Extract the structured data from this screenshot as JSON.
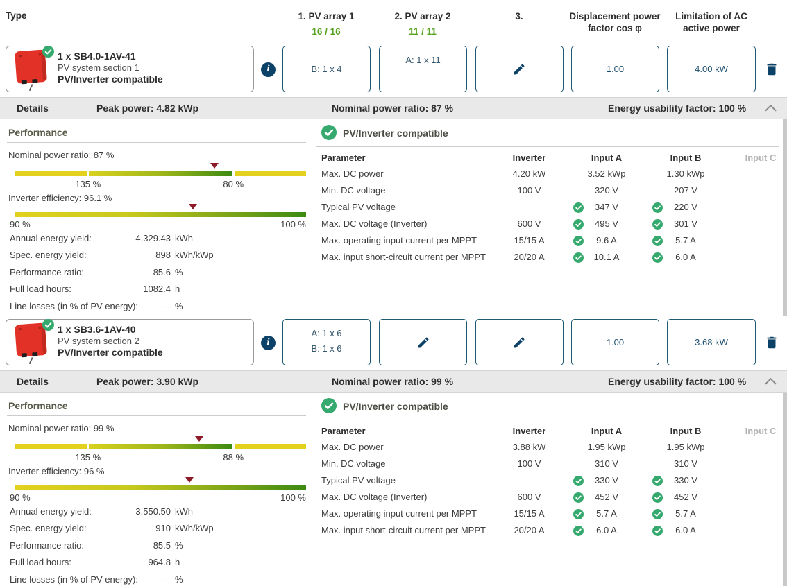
{
  "colors": {
    "accent_navy": "#0d4268",
    "ok_green": "#35a96e",
    "count_green": "#56a11d",
    "gauge_yellow": "#e3d11e",
    "gauge_green": "#3b8a12",
    "marker_red": "#8c1a28",
    "bar_bg": "#e9e9e9"
  },
  "icons": {
    "info": "i"
  },
  "header": {
    "type_label": "Type",
    "col1": {
      "title": "1. PV array 1",
      "count": "16 / 16"
    },
    "col2": {
      "title": "2. PV array 2",
      "count": "11 / 11"
    },
    "col3": {
      "title": "3."
    },
    "col4": {
      "line1": "Displacement power",
      "line2": "factor cos φ"
    },
    "col5": {
      "line1": "Limitation of AC",
      "line2": "active power"
    }
  },
  "inverters": [
    {
      "title": "1 x SB4.0-1AV-41",
      "section": "PV system section 1",
      "status": "PV/Inverter compatible",
      "array1_line": "B: 1 x 4",
      "array2_line": "A: 1 x 11",
      "cos_phi": "1.00",
      "ac_limit": "4.00 kW",
      "details_bar": {
        "label": "Details",
        "peak": "Peak power: 4.82 kWp",
        "npr": "Nominal power ratio: 87 %",
        "euf": "Energy usability factor: 100 %"
      },
      "performance": {
        "heading": "Performance",
        "npr_label": "Nominal power ratio: 87 %",
        "gauge1": {
          "left_label": "135 %",
          "right_label": "80 %",
          "marker_pct": 68.6
        },
        "eff_label": "Inverter efficiency: 96.1 %",
        "gauge2": {
          "left_label": "90 %",
          "right_label": "100 %",
          "marker_pct": 61
        },
        "stats": [
          {
            "label": "Annual energy yield:",
            "num": "4,329.43",
            "unit": "kWh"
          },
          {
            "label": "Spec. energy yield:",
            "num": "898",
            "unit": "kWh/kWp"
          },
          {
            "label": "Performance ratio:",
            "num": "85.6",
            "unit": "%"
          },
          {
            "label": "Full load hours:",
            "num": "1082.4",
            "unit": "h"
          },
          {
            "label": "Line losses (in % of PV energy):",
            "num": "---",
            "unit": "%"
          }
        ]
      },
      "compat": {
        "status": "PV/Inverter compatible",
        "headers": {
          "param": "Parameter",
          "inverter": "Inverter",
          "a": "Input A",
          "b": "Input B",
          "c": "Input C"
        },
        "rows": [
          {
            "param": "Max. DC power",
            "inv": "4.20 kW",
            "a_ok": false,
            "a": "3.52 kWp",
            "b_ok": false,
            "b": "1.30 kWp"
          },
          {
            "param": "Min. DC voltage",
            "inv": "100 V",
            "a_ok": false,
            "a": "320 V",
            "b_ok": false,
            "b": "207 V"
          },
          {
            "param": "Typical PV voltage",
            "inv": "",
            "a_ok": true,
            "a": "347 V",
            "b_ok": true,
            "b": "220 V"
          },
          {
            "param": "Max. DC voltage (Inverter)",
            "inv": "600 V",
            "a_ok": true,
            "a": "495 V",
            "b_ok": true,
            "b": "301 V"
          },
          {
            "param": "Max. operating input current per MPPT",
            "inv": "15/15 A",
            "a_ok": true,
            "a": "9.6 A",
            "b_ok": true,
            "b": "5.7 A"
          },
          {
            "param": "Max. input short-circuit current per MPPT",
            "inv": "20/20 A",
            "a_ok": true,
            "a": "10.1 A",
            "b_ok": true,
            "b": "6.0 A"
          }
        ]
      }
    },
    {
      "title": "1 x SB3.6-1AV-40",
      "section": "PV system section 2",
      "status": "PV/Inverter compatible",
      "array1_line_a": "A: 1 x 6",
      "array1_line_b": "B: 1 x 6",
      "cos_phi": "1.00",
      "ac_limit": "3.68 kW",
      "details_bar": {
        "label": "Details",
        "peak": "Peak power: 3.90 kWp",
        "npr": "Nominal power ratio: 99 %",
        "euf": "Energy usability factor: 100 %"
      },
      "performance": {
        "heading": "Performance",
        "npr_label": "Nominal power ratio: 99 %",
        "gauge1": {
          "left_label": "135 %",
          "right_label": "88 %",
          "marker_pct": 63.3
        },
        "eff_label": "Inverter efficiency: 96 %",
        "gauge2": {
          "left_label": "90 %",
          "right_label": "100 %",
          "marker_pct": 60
        },
        "stats": [
          {
            "label": "Annual energy yield:",
            "num": "3,550.50",
            "unit": "kWh"
          },
          {
            "label": "Spec. energy yield:",
            "num": "910",
            "unit": "kWh/kWp"
          },
          {
            "label": "Performance ratio:",
            "num": "85.5",
            "unit": "%"
          },
          {
            "label": "Full load hours:",
            "num": "964.8",
            "unit": "h"
          },
          {
            "label": "Line losses (in % of PV energy):",
            "num": "---",
            "unit": "%"
          }
        ]
      },
      "compat": {
        "status": "PV/Inverter compatible",
        "headers": {
          "param": "Parameter",
          "inverter": "Inverter",
          "a": "Input A",
          "b": "Input B",
          "c": "Input C"
        },
        "rows": [
          {
            "param": "Max. DC power",
            "inv": "3.88 kW",
            "a_ok": false,
            "a": "1.95 kWp",
            "b_ok": false,
            "b": "1.95 kWp"
          },
          {
            "param": "Min. DC voltage",
            "inv": "100 V",
            "a_ok": false,
            "a": "310 V",
            "b_ok": false,
            "b": "310 V"
          },
          {
            "param": "Typical PV voltage",
            "inv": "",
            "a_ok": true,
            "a": "330 V",
            "b_ok": true,
            "b": "330 V"
          },
          {
            "param": "Max. DC voltage (Inverter)",
            "inv": "600 V",
            "a_ok": true,
            "a": "452 V",
            "b_ok": true,
            "b": "452 V"
          },
          {
            "param": "Max. operating input current per MPPT",
            "inv": "15/15 A",
            "a_ok": true,
            "a": "5.7 A",
            "b_ok": true,
            "b": "5.7 A"
          },
          {
            "param": "Max. input short-circuit current per MPPT",
            "inv": "20/20 A",
            "a_ok": true,
            "a": "6.0 A",
            "b_ok": true,
            "b": "6.0 A"
          }
        ]
      }
    }
  ]
}
